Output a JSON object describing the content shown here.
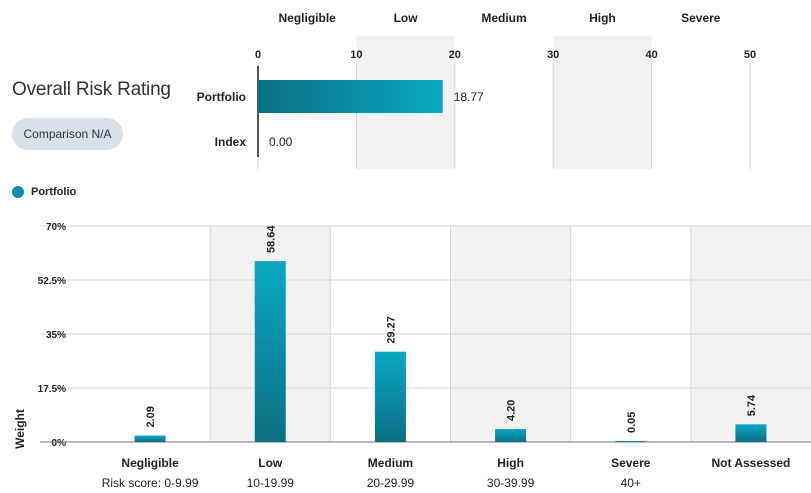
{
  "header": {
    "title": "Overall Risk Rating",
    "comparison_label": "Comparison N/A"
  },
  "legend": {
    "label": "Portfolio",
    "color": "#0a8fa6"
  },
  "chart_data": [
    {
      "type": "bar",
      "orientation": "horizontal",
      "bands": [
        "Negligible",
        "Low",
        "Medium",
        "High",
        "Severe"
      ],
      "band_ranges": [
        [
          0,
          10
        ],
        [
          10,
          20
        ],
        [
          20,
          30
        ],
        [
          30,
          40
        ],
        [
          40,
          50
        ]
      ],
      "xlim": [
        0,
        50
      ],
      "xticks": [
        "0",
        "10",
        "20",
        "30",
        "40",
        "50"
      ],
      "categories": [
        "Portfolio",
        "Index"
      ],
      "values": [
        18.77,
        0.0
      ],
      "value_labels": [
        "18.77",
        "0.00"
      ],
      "grid": true
    },
    {
      "type": "bar",
      "categories": [
        "Negligible",
        "Low",
        "Medium",
        "High",
        "Severe",
        "Not Assessed"
      ],
      "sublabels": [
        "Risk score: 0-9.99",
        "10-19.99",
        "20-29.99",
        "30-39.99",
        "40+",
        ""
      ],
      "series": [
        {
          "name": "Portfolio",
          "values": [
            2.09,
            58.64,
            29.27,
            4.2,
            0.05,
            5.74
          ],
          "labels": [
            "2.09",
            "58.64",
            "29.27",
            "4.20",
            "0.05",
            "5.74"
          ]
        }
      ],
      "ylabel": "Weight",
      "ylim": [
        0,
        70
      ],
      "yticks": [
        0,
        17.5,
        35,
        52.5,
        70
      ],
      "ytick_labels": [
        "0%",
        "17.5%",
        "35%",
        "52.5%",
        "70%"
      ],
      "legend_position": "top-left",
      "grid": true
    }
  ]
}
